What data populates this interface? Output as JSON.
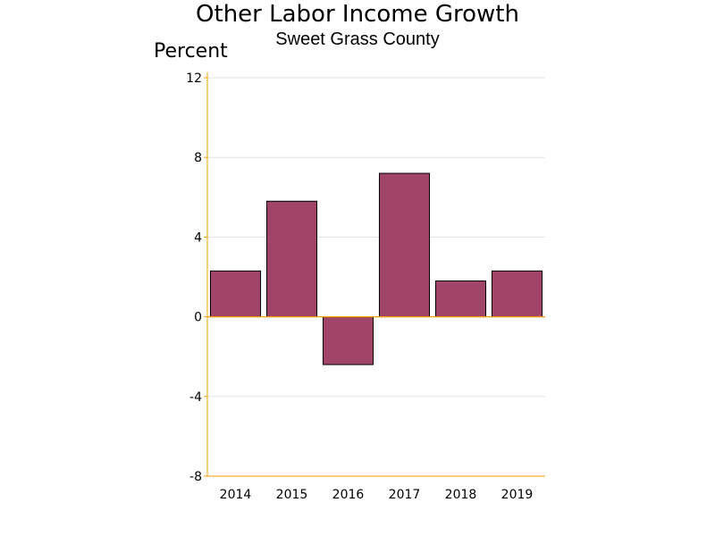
{
  "chart_data": {
    "type": "bar",
    "title": "Other Labor Income Growth",
    "subtitle": "Sweet Grass County",
    "ylabel": "Percent",
    "xlabel": "",
    "categories": [
      "2014",
      "2015",
      "2016",
      "2017",
      "2018",
      "2019"
    ],
    "values": [
      2.3,
      5.8,
      -2.4,
      7.2,
      1.8,
      2.3
    ],
    "ylim": [
      -8,
      12
    ],
    "yticks": [
      "12",
      "8",
      "4",
      "0",
      "-4",
      "-8"
    ],
    "grid": true,
    "colors": {
      "bar": "#a04468",
      "axis": "#f0a000",
      "grid": "#e0e0e0"
    }
  }
}
